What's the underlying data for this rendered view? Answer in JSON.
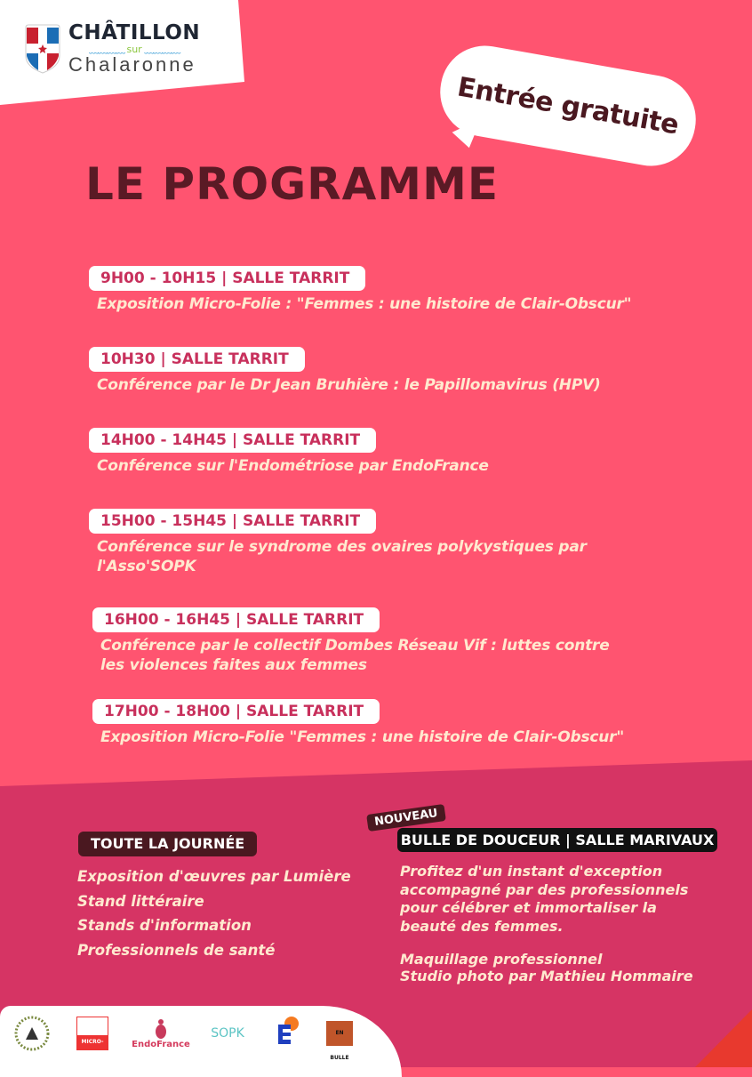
{
  "logo": {
    "line1": "CHÂTILLON",
    "line2": "sur",
    "line3": "Chalaronne",
    "shield_colors": [
      "#C8202F",
      "#1B6DB5",
      "#FFFFFF"
    ]
  },
  "bubble": {
    "text": "Entrée gratuite"
  },
  "title": "LE PROGRAMME",
  "schedule": [
    {
      "time": "9H00 - 10H15 | SALLE TARRIT",
      "lines": [
        "Exposition Micro-Folie : \"Femmes : une histoire de Clair-Obscur\""
      ]
    },
    {
      "time": "10H30 | SALLE TARRIT",
      "lines": [
        "Conférence par le Dr Jean Bruhière : le Papillomavirus (HPV)"
      ]
    },
    {
      "time": "14H00 - 14H45 | SALLE TARRIT",
      "lines": [
        "Conférence sur l'Endométriose par EndoFrance"
      ]
    },
    {
      "time": "15H00 - 15H45 | SALLE TARRIT",
      "lines": [
        "Conférence sur le syndrome des ovaires polykystiques par",
        "l'Asso'SOPK"
      ]
    },
    {
      "time": "16H00 - 16H45 | SALLE TARRIT",
      "lines": [
        "Conférence par le collectif Dombes Réseau Vif : luttes contre",
        "les violences faites aux femmes"
      ]
    },
    {
      "time": "17H00 - 18H00 | SALLE TARRIT",
      "lines": [
        "Exposition Micro-Folie \"Femmes : une histoire de Clair-Obscur\""
      ]
    }
  ],
  "all_day": {
    "label": "TOUTE LA JOURNÉE",
    "items": [
      "Exposition d'œuvres par Lumière",
      "Stand littéraire",
      "Stands d'information",
      "Professionnels de santé"
    ]
  },
  "bulle": {
    "tag": "NOUVEAU",
    "label": "BULLE DE DOUCEUR | SALLE MARIVAUX",
    "lines": [
      "Profitez d'un instant d'exception",
      "accompagné par des professionnels",
      "pour célébrer et immortaliser la",
      "beauté des femmes.",
      "",
      "Maquillage professionnel",
      "Studio photo par Mathieu Hommaire"
    ]
  },
  "partners": [
    "Châtillon-sur-Chalaronne",
    "MICRO-FOLIE",
    "EndoFrance",
    "SOPK",
    "La Ligue contre le cancer",
    "EN BULLE"
  ],
  "colors": {
    "top": "#FF5470",
    "bottom": "#D63464",
    "maroon": "#4A1820",
    "cream": "#FFE9CF",
    "badge_text": "#C8305C"
  }
}
